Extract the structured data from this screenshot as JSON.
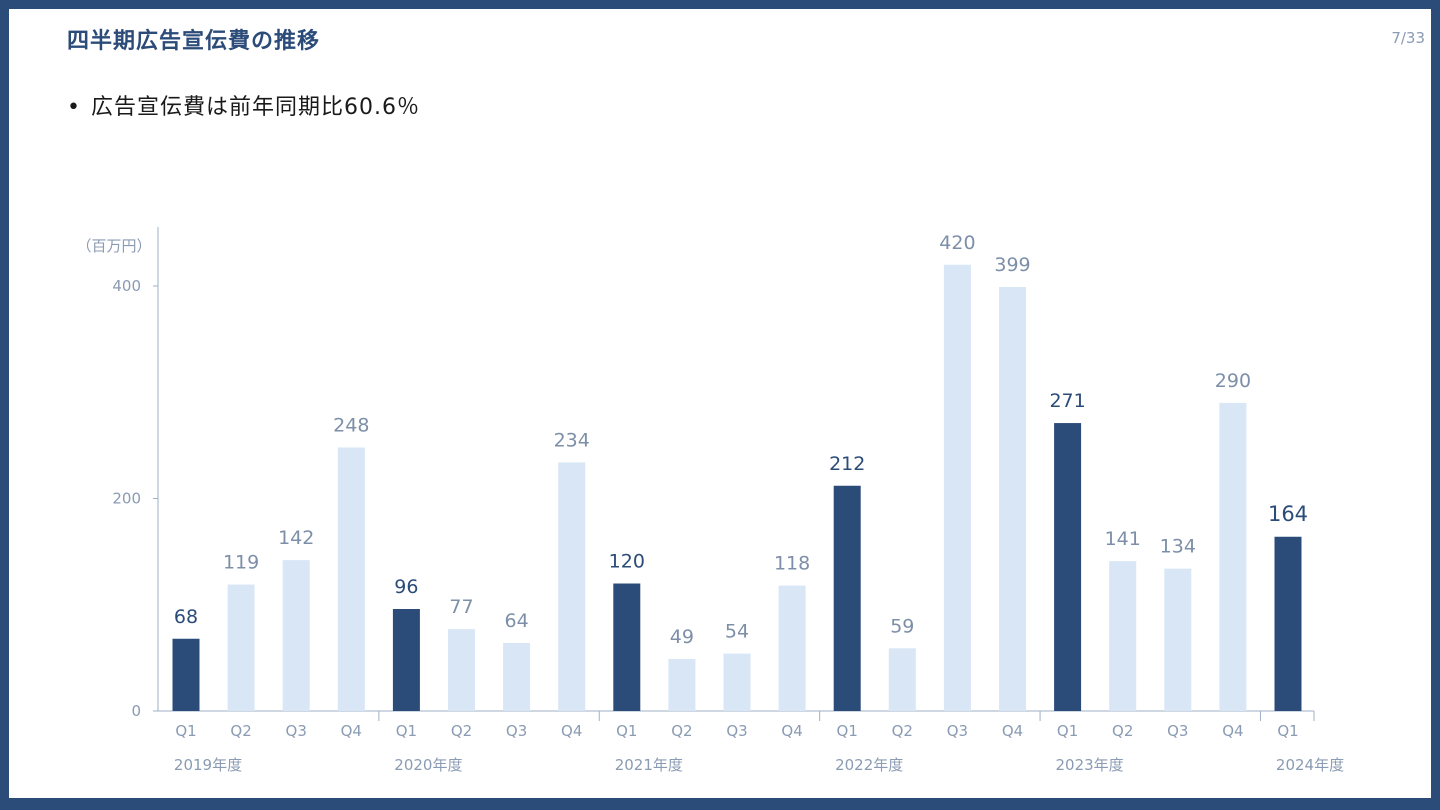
{
  "slide": {
    "title": "四半期広告宣伝費の推移",
    "page": "7/33",
    "bullet": "広告宣伝費は前年同期比60.6％"
  },
  "chart_data": {
    "type": "bar",
    "unit_label": "（百万円）",
    "yticks": [
      0,
      200,
      400
    ],
    "ylim": [
      0,
      450
    ],
    "categories": [
      "Q1",
      "Q2",
      "Q3",
      "Q4",
      "Q1",
      "Q2",
      "Q3",
      "Q4",
      "Q1",
      "Q2",
      "Q3",
      "Q4",
      "Q1",
      "Q2",
      "Q3",
      "Q4",
      "Q1",
      "Q2",
      "Q3",
      "Q4",
      "Q1"
    ],
    "values": [
      68,
      119,
      142,
      248,
      96,
      77,
      64,
      234,
      120,
      49,
      54,
      118,
      212,
      59,
      420,
      399,
      271,
      141,
      134,
      290,
      164
    ],
    "highlight": [
      true,
      false,
      false,
      false,
      true,
      false,
      false,
      false,
      true,
      false,
      false,
      false,
      true,
      false,
      false,
      false,
      true,
      false,
      false,
      false,
      true
    ],
    "groups": [
      {
        "label": "2019年度",
        "start": 0
      },
      {
        "label": "2020年度",
        "start": 4
      },
      {
        "label": "2021年度",
        "start": 8
      },
      {
        "label": "2022年度",
        "start": 12
      },
      {
        "label": "2023年度",
        "start": 16
      },
      {
        "label": "2024年度",
        "start": 20
      }
    ],
    "colors": {
      "highlight": "#2b4b78",
      "normal": "#d8e6f5",
      "label_highlight": "#2b4b78",
      "label_normal": "#7d8fa8",
      "axis": "#9fb0c6",
      "tick_text": "#8a9bb3"
    }
  }
}
